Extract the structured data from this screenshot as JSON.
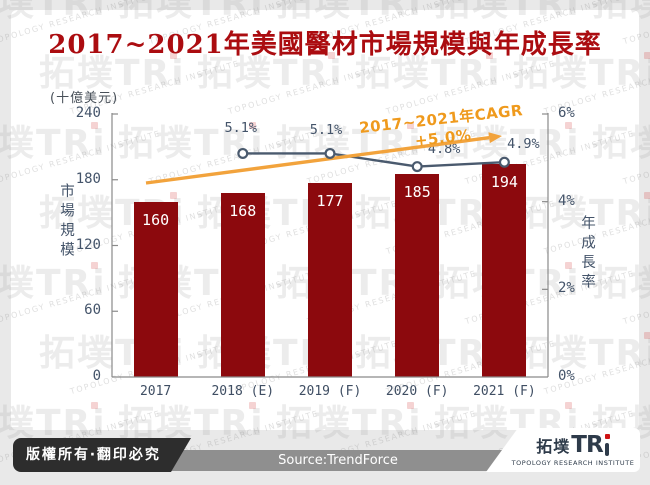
{
  "title": "2017~2021年美國醫材市場規模與年成長率",
  "watermark": {
    "brand": "拓墣TRi",
    "subtitle": "TOPOLOGY RESEARCH INSTITUTE"
  },
  "chart_data": {
    "type": "combo",
    "categories": [
      "2017",
      "2018 (E)",
      "2019 (F)",
      "2020 (F)",
      "2021 (F)"
    ],
    "series": [
      {
        "name": "市場規模",
        "type": "bar",
        "unit": "十億美元",
        "color": "#8c090d",
        "values": [
          160,
          168,
          177,
          185,
          194
        ]
      },
      {
        "name": "年成長率",
        "type": "line",
        "unit": "%",
        "color": "#4a5a6e",
        "values": [
          null,
          5.1,
          5.1,
          4.8,
          4.9
        ],
        "labels": [
          "",
          "5.1%",
          "5.1%",
          "4.8%",
          "4.9%"
        ]
      }
    ],
    "left_axis": {
      "unit_label": "(十億美元)",
      "title": "市場規模",
      "ticks": [
        240,
        180,
        120,
        60,
        0
      ],
      "min": 0,
      "max": 240
    },
    "right_axis": {
      "title": "年成長率",
      "ticks": [
        6,
        4,
        2,
        0
      ],
      "tick_labels": [
        "6%",
        "4%",
        "2%",
        "0%"
      ],
      "min": 0,
      "max": 6
    },
    "annotation": {
      "text": "2017~2021年CAGR +5.0%",
      "color": "#ef9a1d"
    },
    "grid": false,
    "legend": "none",
    "title": "2017~2021年美國醫材市場規模與年成長率"
  },
  "footer": {
    "copyright": "版權所有‧翻印必究",
    "source": "Source:TrendForce",
    "logo": {
      "brand": "拓墣TRi",
      "cjk": "拓墣",
      "latin": "TR",
      "subtitle": "TOPOLOGY RESEARCH INSTITUTE"
    }
  },
  "colors": {
    "title_red": "#ab0c10",
    "bar_red": "#8c090d",
    "line_slate": "#4a5a6e",
    "orange": "#f2a33c",
    "footer_dark": "#2d2d2d",
    "footer_band": "#8f8f8f",
    "logo_navy": "#2e3b4a",
    "logo_dot_red": "#cf1315",
    "page_bg": "#e9e9e9"
  }
}
